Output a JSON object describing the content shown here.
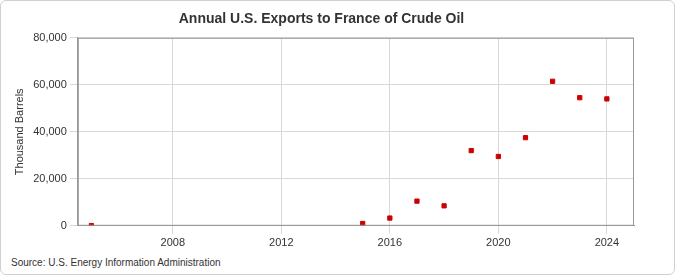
{
  "chart_data": {
    "type": "scatter",
    "title": "Annual U.S. Exports to France of Crude Oil",
    "y_label": "Thousand Barrels",
    "source": "Source: U.S. Energy Information Administration",
    "x": [
      2005,
      2015,
      2016,
      2017,
      2018,
      2019,
      2020,
      2021,
      2022,
      2023,
      2024
    ],
    "values": [
      100,
      1000,
      3300,
      10500,
      8500,
      32000,
      29500,
      37500,
      61500,
      54500,
      54000
    ],
    "color": "#cc0000",
    "marker": "square",
    "xlim": [
      2004.5,
      2025
    ],
    "xticks": [
      2008,
      2012,
      2016,
      2020,
      2024
    ],
    "ylim": [
      0,
      80000
    ],
    "yticks": [
      0,
      {
        "value": 20000,
        "label": "20,000"
      },
      {
        "value": 40000,
        "label": "40,000"
      },
      {
        "value": 60000,
        "label": "60,000"
      },
      {
        "value": 80000,
        "label": "80,000"
      }
    ],
    "grid": true
  }
}
